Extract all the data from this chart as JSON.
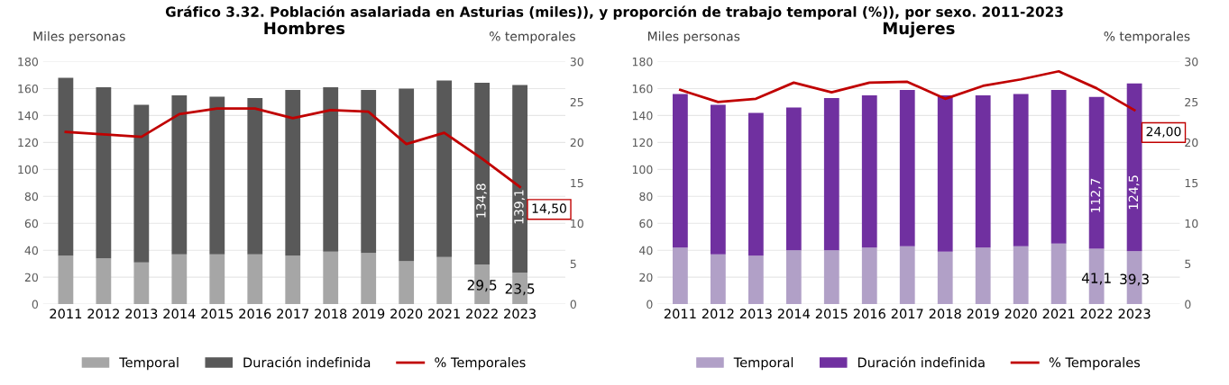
{
  "chart_data": [
    {
      "type": "bar",
      "stacked": true,
      "title": "Hombres",
      "ylabel": "Miles personas",
      "y2label": "% temporales",
      "annotations": [
        "Gráfico 3.32. Población asalariada en Asturias (miles)), y proporción de trabajo temporal (%)), por sexo. 2011-2023"
      ],
      "categories": [
        "2011",
        "2012",
        "2013",
        "2014",
        "2015",
        "2016",
        "2017",
        "2018",
        "2019",
        "2020",
        "2021",
        "2022",
        "2023"
      ],
      "series": [
        {
          "name": "Temporal",
          "color": "#a6a6a6",
          "values": [
            36,
            34,
            31,
            37,
            37,
            37,
            36,
            39,
            38,
            32,
            35,
            29.5,
            23.5
          ],
          "value_labels": [
            null,
            null,
            null,
            null,
            null,
            null,
            null,
            null,
            null,
            null,
            null,
            "29,5",
            "23,5"
          ]
        },
        {
          "name": "Duración indefinida",
          "color": "#595959",
          "values": [
            132,
            127,
            117,
            118,
            117,
            116,
            123,
            122,
            121,
            128,
            131,
            134.8,
            139.1
          ],
          "value_labels": [
            null,
            null,
            null,
            null,
            null,
            null,
            null,
            null,
            null,
            null,
            null,
            "134,8",
            "139,1"
          ]
        },
        {
          "name": "% Temporales",
          "type": "line",
          "axis": "y2",
          "color": "#c00000",
          "values": [
            21.3,
            21.0,
            20.7,
            23.5,
            24.2,
            24.2,
            23.0,
            24.0,
            23.8,
            19.8,
            21.2,
            18.0,
            14.5
          ],
          "value_labels": [
            null,
            null,
            null,
            null,
            null,
            null,
            null,
            null,
            null,
            null,
            null,
            null,
            "14,50"
          ]
        }
      ],
      "ylim": [
        0,
        180
      ],
      "yticks": [
        0,
        20,
        40,
        60,
        80,
        100,
        120,
        140,
        160,
        180
      ],
      "y2lim": [
        0,
        30
      ],
      "y2ticks": [
        0,
        5,
        10,
        15,
        20,
        25,
        30
      ],
      "grid": "y",
      "legend": "bottom",
      "marker": "none",
      "line_style": "solid"
    },
    {
      "type": "bar",
      "stacked": true,
      "title": "Mujeres",
      "ylabel": "Miles personas",
      "y2label": "% temporales",
      "categories": [
        "2011",
        "2012",
        "2013",
        "2014",
        "2015",
        "2016",
        "2017",
        "2018",
        "2019",
        "2020",
        "2021",
        "2022",
        "2023"
      ],
      "series": [
        {
          "name": "Temporal",
          "color": "#b1a0c7",
          "values": [
            42,
            37,
            36,
            40,
            40,
            42,
            43,
            39,
            42,
            43,
            45,
            41.1,
            39.3
          ],
          "value_labels": [
            null,
            null,
            null,
            null,
            null,
            null,
            null,
            null,
            null,
            null,
            null,
            "41,1",
            "39,3"
          ]
        },
        {
          "name": "Duración indefinida",
          "color": "#7030a0",
          "values": [
            114,
            111,
            106,
            106,
            113,
            113,
            116,
            116,
            113,
            113,
            114,
            112.7,
            124.5
          ],
          "value_labels": [
            null,
            null,
            null,
            null,
            null,
            null,
            null,
            null,
            null,
            null,
            null,
            "112,7",
            "124,5"
          ]
        },
        {
          "name": "% Temporales",
          "type": "line",
          "axis": "y2",
          "color": "#c00000",
          "values": [
            26.5,
            25.0,
            25.4,
            27.4,
            26.2,
            27.4,
            27.5,
            25.4,
            27.0,
            27.8,
            28.8,
            26.7,
            24.0
          ],
          "value_labels": [
            null,
            null,
            null,
            null,
            null,
            null,
            null,
            null,
            null,
            null,
            null,
            null,
            "24,00"
          ]
        }
      ],
      "ylim": [
        0,
        180
      ],
      "yticks": [
        0,
        20,
        40,
        60,
        80,
        100,
        120,
        140,
        160,
        180
      ],
      "y2lim": [
        0,
        30
      ],
      "y2ticks": [
        0,
        5,
        10,
        15,
        20,
        25,
        30
      ],
      "grid": "y",
      "legend": "bottom",
      "marker": "none",
      "line_style": "solid"
    }
  ]
}
